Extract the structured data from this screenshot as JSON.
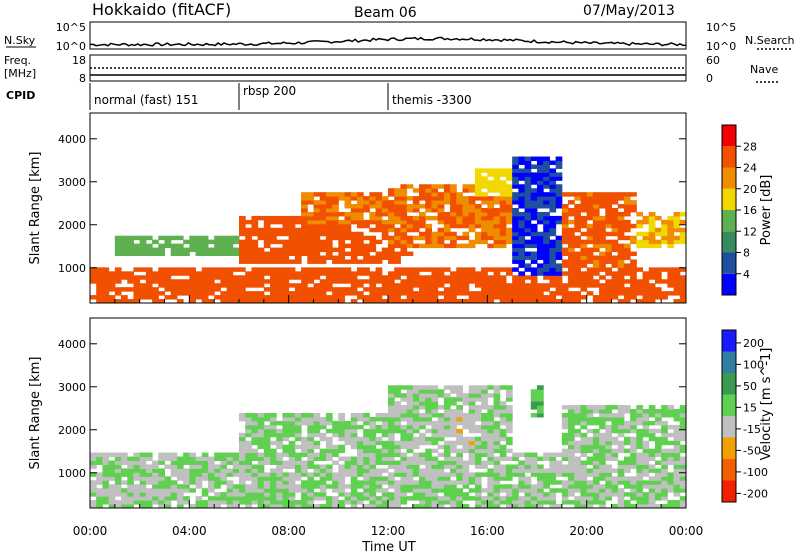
{
  "header": {
    "station": "Hokkaido (fitACF)",
    "beam": "Beam 06",
    "date": "07/May/2013"
  },
  "noise_panel": {
    "left_label": "N.Sky",
    "right_label": "N.Search",
    "ticks_left": [
      "10^5",
      "10^0"
    ],
    "ticks_right": [
      "10^5",
      "10^0"
    ]
  },
  "freq_panel": {
    "left_label_1": "Freq.",
    "left_label_2": "[MHz]",
    "right_label": "Nave",
    "ticks_left": [
      "18",
      "8"
    ],
    "ticks_right": [
      "60",
      "0"
    ]
  },
  "cpid": {
    "label": "CPID",
    "segments": [
      {
        "name": "normal (fast) 151",
        "start_hour": 0,
        "end_hour": 6
      },
      {
        "name": "rbsp 200",
        "start_hour": 6,
        "end_hour": 12
      },
      {
        "name": "themis -3300",
        "start_hour": 12,
        "end_hour": 24
      }
    ]
  },
  "colors": {
    "power_scale": [
      "#0000ff",
      "#1f50a0",
      "#3a8a60",
      "#5fb050",
      "#f0d800",
      "#f08c00",
      "#f05000",
      "#f00000"
    ],
    "velocity_scale": [
      "#1a1aff",
      "#2f7fa0",
      "#3a9a50",
      "#60d050",
      "#c0c0c0",
      "#f0a000",
      "#f06000",
      "#f02000"
    ],
    "ground_scatter": "#bebebe"
  },
  "chart_data": [
    {
      "type": "heatmap",
      "title": "",
      "xlabel": "",
      "ylabel": "Slant Range [km]",
      "xlim": [
        0,
        24
      ],
      "ylim": [
        180,
        4600
      ],
      "x_ticks": [
        "00:00",
        "04:00",
        "08:00",
        "12:00",
        "16:00",
        "20:00",
        "00:00"
      ],
      "y_ticks": [
        "1000",
        "2000",
        "3000",
        "4000"
      ],
      "colorbar": {
        "label": "Power [dB]",
        "ticks": [
          "4",
          "8",
          "12",
          "16",
          "20",
          "24",
          "28"
        ],
        "range": [
          0,
          32
        ]
      },
      "regions": [
        {
          "t": [
            0,
            24
          ],
          "r": [
            200,
            1000
          ],
          "value": 26
        },
        {
          "t": [
            1,
            7
          ],
          "r": [
            1300,
            1700
          ],
          "value": 14
        },
        {
          "t": [
            6,
            13
          ],
          "r": [
            1100,
            2200
          ],
          "value": 26
        },
        {
          "t": [
            8.5,
            12
          ],
          "r": [
            2000,
            2800
          ],
          "value": 24
        },
        {
          "t": [
            12,
            17
          ],
          "r": [
            1500,
            2900
          ],
          "value": 24
        },
        {
          "t": [
            15.5,
            17
          ],
          "r": [
            2700,
            3300
          ],
          "value": 18
        },
        {
          "t": [
            17,
            19
          ],
          "r": [
            800,
            3600
          ],
          "value": 4
        },
        {
          "t": [
            19,
            22
          ],
          "r": [
            1000,
            2800
          ],
          "value": 25
        },
        {
          "t": [
            22,
            24
          ],
          "r": [
            1500,
            2300
          ],
          "value": 20
        }
      ]
    },
    {
      "type": "heatmap",
      "title": "",
      "xlabel": "Time UT",
      "ylabel": "Slant Range [km]",
      "xlim": [
        0,
        24
      ],
      "ylim": [
        180,
        4600
      ],
      "x_ticks": [
        "00:00",
        "04:00",
        "08:00",
        "12:00",
        "16:00",
        "20:00",
        "00:00"
      ],
      "y_ticks": [
        "1000",
        "2000",
        "3000",
        "4000"
      ],
      "colorbar": {
        "label": "Velocity [m s^-1]",
        "ticks": [
          "200",
          "100",
          "50",
          "15",
          "-15",
          "-50",
          "-100",
          "-200"
        ],
        "range": [
          -250,
          250
        ]
      },
      "regions": [
        {
          "t": [
            0,
            24
          ],
          "r": [
            200,
            1500
          ],
          "value": 0
        },
        {
          "t": [
            6,
            13
          ],
          "r": [
            1100,
            2400
          ],
          "value": 0
        },
        {
          "t": [
            12,
            17
          ],
          "r": [
            1500,
            3000
          ],
          "value": 0
        },
        {
          "t": [
            17.7,
            18.3
          ],
          "r": [
            2300,
            3000
          ],
          "value": 60
        },
        {
          "t": [
            19,
            24
          ],
          "r": [
            1200,
            2600
          ],
          "value": 0
        },
        {
          "t": [
            14.5,
            15.5
          ],
          "r": [
            1600,
            2400
          ],
          "value": -40
        }
      ]
    }
  ]
}
